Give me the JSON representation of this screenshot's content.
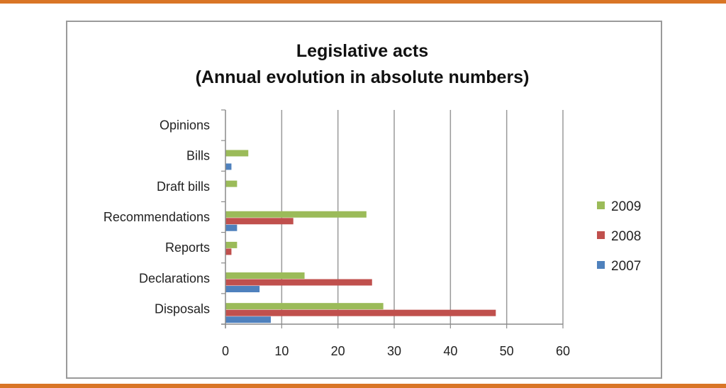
{
  "chart_data": {
    "type": "bar",
    "orientation": "horizontal",
    "title": "Legislative acts",
    "subtitle": "(Annual evolution in absolute numbers)",
    "xlabel": "",
    "ylabel": "",
    "xlim": [
      0,
      60
    ],
    "xticks": [
      0,
      10,
      20,
      30,
      40,
      50,
      60
    ],
    "grid": "vertical",
    "legend_position": "right",
    "categories": [
      "Opinions",
      "Bills",
      "Draft bills",
      "Recommendations",
      "Reports",
      "Declarations",
      "Disposals"
    ],
    "series": [
      {
        "name": "2009",
        "color": "#9bbb59",
        "values": [
          0,
          4,
          2,
          25,
          2,
          14,
          28
        ]
      },
      {
        "name": "2008",
        "color": "#c0504d",
        "values": [
          0,
          0,
          0,
          12,
          1,
          26,
          48
        ]
      },
      {
        "name": "2007",
        "color": "#4f81bd",
        "values": [
          0,
          1,
          0,
          2,
          0,
          6,
          8
        ]
      }
    ]
  },
  "page": {
    "accent_color": "#d97526"
  }
}
